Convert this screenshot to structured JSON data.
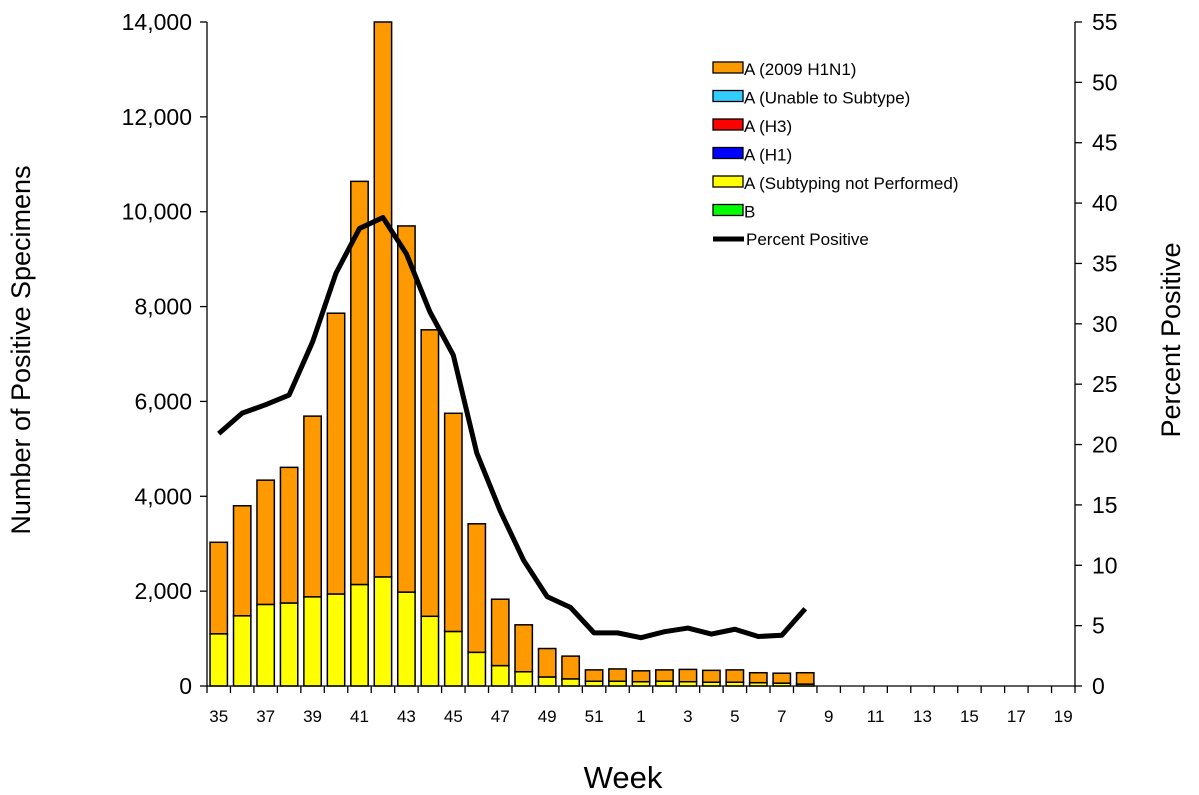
{
  "chart_data": {
    "type": "bar",
    "stacked": true,
    "title": "",
    "xlabel": "Week",
    "ylabel": "Number of Positive Specimens",
    "y2label": "Percent Positive",
    "ylim": [
      0,
      14000
    ],
    "y2lim": [
      0,
      55
    ],
    "yticks": [
      "0",
      "2,000",
      "4,000",
      "6,000",
      "8,000",
      "10,000",
      "12,000",
      "14,000"
    ],
    "y2ticks": [
      "0",
      "5",
      "10",
      "15",
      "20",
      "25",
      "30",
      "35",
      "40",
      "45",
      "50",
      "55"
    ],
    "categories": [
      35,
      36,
      37,
      38,
      39,
      40,
      41,
      42,
      43,
      44,
      45,
      46,
      47,
      48,
      49,
      50,
      51,
      52,
      1,
      2,
      3,
      4,
      5,
      6,
      7,
      8,
      9,
      10,
      11,
      12,
      13,
      14,
      15,
      16,
      17,
      18,
      19
    ],
    "xtick_labels": [
      "35",
      "",
      "37",
      "",
      "39",
      "",
      "41",
      "",
      "43",
      "",
      "45",
      "",
      "47",
      "",
      "49",
      "",
      "51",
      "",
      "1",
      "",
      "3",
      "",
      "5",
      "",
      "7",
      "",
      "9",
      "",
      "11",
      "",
      "13",
      "",
      "15",
      "",
      "17",
      "",
      "19"
    ],
    "series": [
      {
        "name": "A (2009 H1N1)",
        "color": "#FF9900",
        "values": [
          1930,
          2320,
          2620,
          2860,
          3810,
          5920,
          8500,
          11700,
          7720,
          6040,
          4600,
          2710,
          1400,
          990,
          600,
          480,
          240,
          260,
          230,
          240,
          260,
          250,
          260,
          210,
          210,
          240,
          0,
          0,
          0,
          0,
          0,
          0,
          0,
          0,
          0,
          0,
          0
        ]
      },
      {
        "name": "A (Unable to Subtype)",
        "color": "#33CCFF",
        "values": [
          0,
          0,
          0,
          0,
          0,
          0,
          0,
          0,
          0,
          0,
          0,
          0,
          0,
          0,
          0,
          0,
          0,
          0,
          0,
          0,
          0,
          0,
          0,
          0,
          0,
          0,
          0,
          0,
          0,
          0,
          0,
          0,
          0,
          0,
          0,
          0,
          0
        ]
      },
      {
        "name": "A (H3)",
        "color": "#FF0000",
        "values": [
          0,
          0,
          0,
          0,
          0,
          0,
          0,
          0,
          0,
          0,
          0,
          0,
          0,
          0,
          0,
          0,
          0,
          0,
          0,
          0,
          0,
          0,
          0,
          0,
          0,
          0,
          0,
          0,
          0,
          0,
          0,
          0,
          0,
          0,
          0,
          0,
          0
        ]
      },
      {
        "name": "A (H1)",
        "color": "#0000FF",
        "values": [
          0,
          0,
          0,
          0,
          0,
          0,
          0,
          0,
          0,
          0,
          0,
          0,
          0,
          0,
          0,
          0,
          0,
          0,
          0,
          0,
          0,
          0,
          0,
          0,
          0,
          0,
          0,
          0,
          0,
          0,
          0,
          0,
          0,
          0,
          0,
          0,
          0
        ]
      },
      {
        "name": "A (Subtyping not Performed)",
        "color": "#FFFF00",
        "values": [
          1100,
          1480,
          1720,
          1750,
          1880,
          1940,
          2140,
          2300,
          1980,
          1470,
          1150,
          710,
          430,
          300,
          190,
          150,
          100,
          100,
          90,
          100,
          90,
          80,
          80,
          70,
          60,
          40,
          0,
          0,
          0,
          0,
          0,
          0,
          0,
          0,
          0,
          0,
          0
        ]
      },
      {
        "name": "B",
        "color": "#00FF00",
        "values": [
          0,
          0,
          0,
          0,
          0,
          0,
          0,
          0,
          0,
          0,
          0,
          0,
          0,
          0,
          0,
          0,
          0,
          0,
          0,
          0,
          0,
          0,
          0,
          0,
          0,
          0,
          0,
          0,
          0,
          0,
          0,
          0,
          0,
          0,
          0,
          0,
          0
        ]
      }
    ],
    "line_series": {
      "name": "Percent Positive",
      "color": "#000000",
      "values": [
        20.9,
        22.6,
        23.3,
        24.1,
        28.5,
        34.2,
        37.9,
        38.8,
        35.8,
        31.0,
        27.4,
        19.3,
        14.5,
        10.4,
        7.4,
        6.5,
        4.4,
        4.4,
        4.0,
        4.5,
        4.8,
        4.3,
        4.7,
        4.1,
        4.2,
        6.4,
        null,
        null,
        null,
        null,
        null,
        null,
        null,
        null,
        null,
        null,
        null
      ]
    },
    "legend_position": "top-right",
    "grid": false
  }
}
